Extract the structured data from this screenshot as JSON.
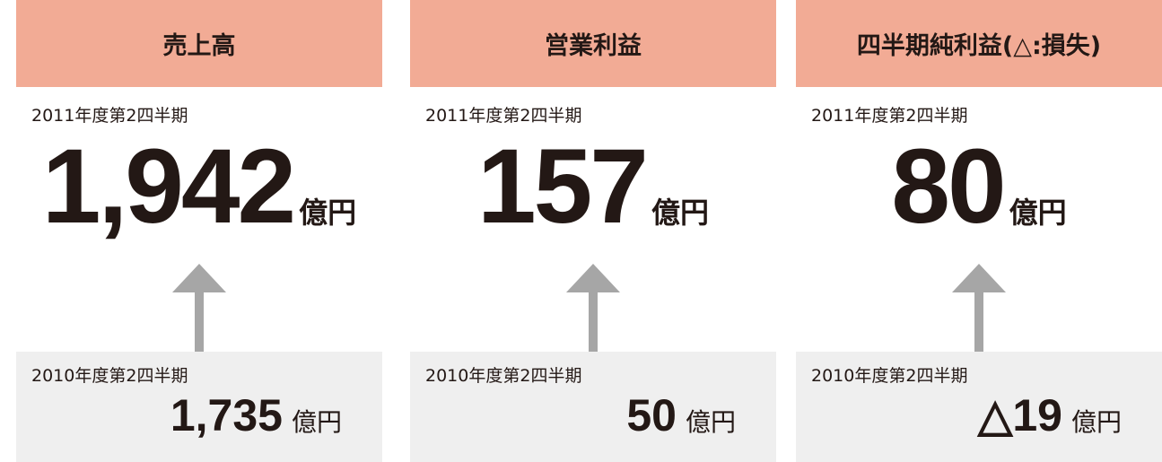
{
  "panels": [
    {
      "title": "売上高",
      "current_period": "2011年度第2四半期",
      "current_value": "1,942",
      "current_unit": "億円",
      "previous_period": "2010年度第2四半期",
      "previous_value": "1,735",
      "previous_unit": "億円"
    },
    {
      "title": "営業利益",
      "current_period": "2011年度第2四半期",
      "current_value": "157",
      "current_unit": "億円",
      "previous_period": "2010年度第2四半期",
      "previous_value": "50",
      "previous_unit": "億円"
    },
    {
      "title": "四半期純利益(△:損失)",
      "current_period": "2011年度第2四半期",
      "current_value": "80",
      "current_unit": "億円",
      "previous_period": "2010年度第2四半期",
      "previous_value": "△19",
      "previous_unit": "億円"
    }
  ]
}
